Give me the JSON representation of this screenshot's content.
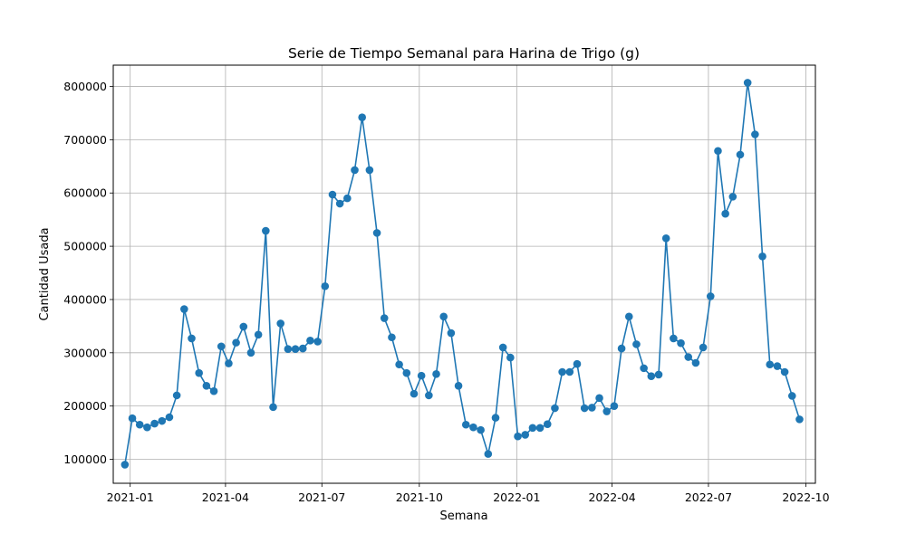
{
  "chart_data": {
    "type": "line",
    "title": "Serie de Tiempo Semanal para Harina de Trigo (g)",
    "xlabel": "Semana",
    "ylabel": "Cantidad Usada",
    "x_range": [
      "2020-12-16",
      "2022-10-10"
    ],
    "ylim": [
      55000,
      840000
    ],
    "grid": true,
    "markers": true,
    "color": "#1f77b4",
    "x_ticks": [
      {
        "date": "2021-01-01",
        "label": "2021-01"
      },
      {
        "date": "2021-04-01",
        "label": "2021-04"
      },
      {
        "date": "2021-07-01",
        "label": "2021-07"
      },
      {
        "date": "2021-10-01",
        "label": "2021-10"
      },
      {
        "date": "2022-01-01",
        "label": "2022-01"
      },
      {
        "date": "2022-04-01",
        "label": "2022-04"
      },
      {
        "date": "2022-07-01",
        "label": "2022-07"
      },
      {
        "date": "2022-10-01",
        "label": "2022-10"
      }
    ],
    "y_ticks": [
      {
        "value": 100000,
        "label": "100000"
      },
      {
        "value": 200000,
        "label": "200000"
      },
      {
        "value": 300000,
        "label": "300000"
      },
      {
        "value": 400000,
        "label": "400000"
      },
      {
        "value": 500000,
        "label": "500000"
      },
      {
        "value": 600000,
        "label": "600000"
      },
      {
        "value": 700000,
        "label": "700000"
      },
      {
        "value": 800000,
        "label": "800000"
      }
    ],
    "series": [
      {
        "x": [
          "2020-12-27",
          "2021-01-03",
          "2021-01-10",
          "2021-01-17",
          "2021-01-24",
          "2021-01-31",
          "2021-02-07",
          "2021-02-14",
          "2021-02-21",
          "2021-02-28",
          "2021-03-07",
          "2021-03-14",
          "2021-03-21",
          "2021-03-28",
          "2021-04-04",
          "2021-04-11",
          "2021-04-18",
          "2021-04-25",
          "2021-05-02",
          "2021-05-09",
          "2021-05-16",
          "2021-05-23",
          "2021-05-30",
          "2021-06-06",
          "2021-06-13",
          "2021-06-20",
          "2021-06-27",
          "2021-07-04",
          "2021-07-11",
          "2021-07-18",
          "2021-07-25",
          "2021-08-01",
          "2021-08-08",
          "2021-08-15",
          "2021-08-22",
          "2021-08-29",
          "2021-09-05",
          "2021-09-12",
          "2021-09-19",
          "2021-09-26",
          "2021-10-03",
          "2021-10-10",
          "2021-10-17",
          "2021-10-24",
          "2021-10-31",
          "2021-11-07",
          "2021-11-14",
          "2021-11-21",
          "2021-11-28",
          "2021-12-05",
          "2021-12-12",
          "2021-12-19",
          "2021-12-26",
          "2022-01-02",
          "2022-01-09",
          "2022-01-16",
          "2022-01-23",
          "2022-01-30",
          "2022-02-06",
          "2022-02-13",
          "2022-02-20",
          "2022-02-27",
          "2022-03-06",
          "2022-03-13",
          "2022-03-20",
          "2022-03-27",
          "2022-04-03",
          "2022-04-10",
          "2022-04-17",
          "2022-04-24",
          "2022-05-01",
          "2022-05-08",
          "2022-05-15",
          "2022-05-22",
          "2022-05-29",
          "2022-06-05",
          "2022-06-12",
          "2022-06-19",
          "2022-06-26",
          "2022-07-03",
          "2022-07-10",
          "2022-07-17",
          "2022-07-24",
          "2022-07-31",
          "2022-08-07",
          "2022-08-14",
          "2022-08-21",
          "2022-08-28",
          "2022-09-04",
          "2022-09-11",
          "2022-09-18",
          "2022-09-25"
        ],
        "values": [
          90000,
          177000,
          165000,
          160000,
          167000,
          172000,
          179000,
          220000,
          382000,
          327000,
          262000,
          238000,
          228000,
          312000,
          280000,
          319000,
          349000,
          300000,
          334000,
          529000,
          198000,
          355000,
          307000,
          307000,
          308000,
          323000,
          321000,
          425000,
          597000,
          580000,
          590000,
          643000,
          742000,
          643000,
          525000,
          365000,
          329000,
          278000,
          262000,
          223000,
          257000,
          220000,
          260000,
          368000,
          337000,
          238000,
          165000,
          160000,
          155000,
          110000,
          178000,
          310000,
          291000,
          143000,
          146000,
          159000,
          159000,
          166000,
          196000,
          264000,
          264000,
          279000,
          196000,
          197000,
          215000,
          190000,
          200000,
          308000,
          368000,
          316000,
          271000,
          256000,
          259000,
          515000,
          327000,
          318000,
          292000,
          281000,
          310000,
          406000,
          679000,
          561000,
          593000,
          672000,
          807000,
          710000,
          481000,
          278000,
          275000,
          264000,
          219000,
          175000
        ]
      }
    ]
  }
}
